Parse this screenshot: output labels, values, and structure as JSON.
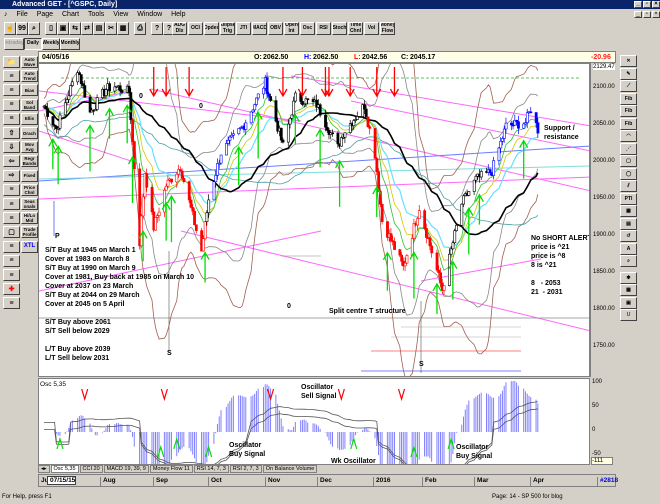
{
  "window": {
    "title": "Advanced GET - [^GSPC, Daily]"
  },
  "menu": [
    "File",
    "Page",
    "Chart",
    "Tools",
    "View",
    "Window",
    "Help"
  ],
  "toolbar": {
    "icons": [
      "pointer-icon",
      "quote-icon",
      "zoom-icon",
      "new-icon",
      "save-icon",
      "open-icon",
      "export-icon",
      "page-icon",
      "cut-icon",
      "grid-icon",
      "print-icon",
      "help-icon",
      "context-help-icon"
    ],
    "studies": [
      "ADG Dlx",
      "OCI",
      "Opdes",
      "Ellipse Trig",
      "JTI",
      "MACD",
      "OBV",
      "Open Int",
      "Osc",
      "RSI",
      "Stoch",
      "Time Chnl",
      "Vol",
      "Money Flow"
    ]
  },
  "periods": {
    "intraday": "Intraday",
    "daily": "Daily",
    "weekly": "Weekly",
    "monthly": "Monthly",
    "active": "Daily"
  },
  "left_tools": {
    "icons": [
      "folder-icon",
      "template-icon",
      "dock-icon",
      "ruler-icon",
      "indicator-icon",
      "arrow-up-icon",
      "arrow-down-icon",
      "arrow-left-icon",
      "arrow-right-icon",
      "expand-icon",
      "compress-icon",
      "spacing-icon",
      "blank-icon",
      "lines-icon",
      "scroll-icon",
      "fill-icon",
      "crosshair-icon",
      "window-icon"
    ],
    "studies": [
      "Auto Wave",
      "Auto Trend",
      "Bias",
      "Sol Band",
      "Ellis",
      "Drach",
      "Mov Avg",
      "Regr Bands",
      "Fixed",
      "Price Chnl",
      "Seas onals",
      "Hi/Lo Mid",
      "Trade Profile",
      "XTL"
    ]
  },
  "info": {
    "date": "04/05/16",
    "open_label": "O:",
    "open": "2062.50",
    "high_label": "H:",
    "high": "2062.50",
    "low_label": "L:",
    "low": "2042.56",
    "close_label": "C:",
    "close": "2045.17",
    "change": "-20.96"
  },
  "price_axis": {
    "top": "2129.47",
    "ticks": [
      "2100.00",
      "2050.00",
      "2000.00",
      "1950.00",
      "1900.00",
      "1850.00",
      "1800.00",
      "1750.00"
    ]
  },
  "annotations": {
    "rules": [
      "S/T Buy at 1945 on March 1",
      "Cover at 1983 on March 8",
      "S/T Buy at 1990 on March 9",
      "Cover at 1981, Buy back at 1985 on March 10",
      "Cover at 2037 on 23 March",
      "S/T Buy at 2044 on 29 March",
      "Cover at 2045 on 5 April",
      "",
      "S/T Buy above 2061",
      "S/T Sell below 2029",
      "",
      "L/T Buy above 2039",
      "L/T Sell below 2031"
    ],
    "alert": [
      "No SHORT ALERT",
      "price is ^21",
      "price is ^8",
      "8 is ^21",
      "",
      "8   - 2053",
      "21  - 2031"
    ],
    "support": "Support /\nresistance",
    "split": "Split centre T structure",
    "wave_labels": {
      "p": "P",
      "s1": "S",
      "s2": "S",
      "zero1": "0",
      "zero2": "0",
      "zero3": "0"
    }
  },
  "chart_data": {
    "type": "candlestick",
    "symbol": "^GSPC",
    "ylim": [
      1720,
      2130
    ],
    "price_path": [
      [
        "2015-07-01",
        2077
      ],
      [
        "2015-07-08",
        2046
      ],
      [
        "2015-07-20",
        2128
      ],
      [
        "2015-07-27",
        2068
      ],
      [
        "2015-08-05",
        2100
      ],
      [
        "2015-08-10",
        2104
      ],
      [
        "2015-08-18",
        2096
      ],
      [
        "2015-08-24",
        1893
      ],
      [
        "2015-08-27",
        1988
      ],
      [
        "2015-09-01",
        1913
      ],
      [
        "2015-09-08",
        1970
      ],
      [
        "2015-09-16",
        1995
      ],
      [
        "2015-09-28",
        1881
      ],
      [
        "2015-10-02",
        1951
      ],
      [
        "2015-10-09",
        2014
      ],
      [
        "2015-10-22",
        2052
      ],
      [
        "2015-11-03",
        2109
      ],
      [
        "2015-11-13",
        2023
      ],
      [
        "2015-11-20",
        2089
      ],
      [
        "2015-12-02",
        2079
      ],
      [
        "2015-12-14",
        2021
      ],
      [
        "2015-12-17",
        2041
      ],
      [
        "2015-12-29",
        2078
      ],
      [
        "2016-01-04",
        2012
      ],
      [
        "2016-01-08",
        1922
      ],
      [
        "2016-01-20",
        1859
      ],
      [
        "2016-01-29",
        1940
      ],
      [
        "2016-02-11",
        1829
      ],
      [
        "2016-02-22",
        1945
      ],
      [
        "2016-03-01",
        1978
      ],
      [
        "2016-03-10",
        1989
      ],
      [
        "2016-03-18",
        2050
      ],
      [
        "2016-03-29",
        2055
      ],
      [
        "2016-04-01",
        2073
      ],
      [
        "2016-04-05",
        2045
      ]
    ],
    "sell_signals": [
      "2015-09-01",
      "2015-09-08",
      "2015-09-21",
      "2015-11-13",
      "2015-11-24",
      "2015-12-07",
      "2015-12-09",
      "2015-12-21",
      "2016-01-05",
      "2016-01-15"
    ],
    "buy_signals": [
      "2015-07-06",
      "2015-07-09",
      "2015-07-27",
      "2015-08-07",
      "2015-08-17",
      "2015-08-20",
      "2015-08-26",
      "2015-09-08",
      "2015-09-11",
      "2015-09-30",
      "2015-10-19",
      "2015-10-30",
      "2015-11-20",
      "2015-12-04",
      "2015-12-15",
      "2016-01-05",
      "2016-01-11",
      "2016-01-26",
      "2016-02-08",
      "2016-02-17",
      "2016-02-26",
      "2016-03-03",
      "2016-03-28"
    ],
    "colors": {
      "up": "#0000ff",
      "down": "#ff0000",
      "neutral": "#000000",
      "buy": "#00dd00",
      "sell": "#ff0000",
      "trendline": "#ff66ff"
    }
  },
  "oscillator": {
    "label": "Osc 5,35",
    "ticks": [
      "100",
      "50",
      "0",
      "-50"
    ],
    "current": "-111",
    "notes": {
      "sell": "Oscillator\nSell Signal",
      "buy1": "Oscillator\nBuy Signal",
      "wk": "Wk Oscillator\nBuy Signal",
      "buy2": "Oscillator\nBuy Signal"
    },
    "sell_signals": [
      "2015-07-24",
      "2015-09-07",
      "2015-11-06",
      "2015-12-16",
      "2016-01-19"
    ],
    "buy_signals": [
      "2015-07-10",
      "2015-09-05",
      "2015-09-14",
      "2015-10-02",
      "2015-12-23",
      "2016-01-26",
      "2016-02-16"
    ]
  },
  "tabs": [
    "Osc 5,35",
    "CCI 20",
    "MACD 19, 39, 9",
    "Money Flow 11",
    "RSI 14, 7, 3",
    "RSI 2, 7, 3",
    "On Balance Volume"
  ],
  "datebar": {
    "cursor": "07/15/15",
    "months": [
      "Ju",
      "Aug",
      "Sep",
      "Oct",
      "Nov",
      "Dec",
      "2016",
      "Feb",
      "Mar",
      "Apr"
    ],
    "count": "#2818"
  },
  "status": {
    "help": "For Help, press F1",
    "page": "Page: 14 - SP 500 for blog"
  }
}
